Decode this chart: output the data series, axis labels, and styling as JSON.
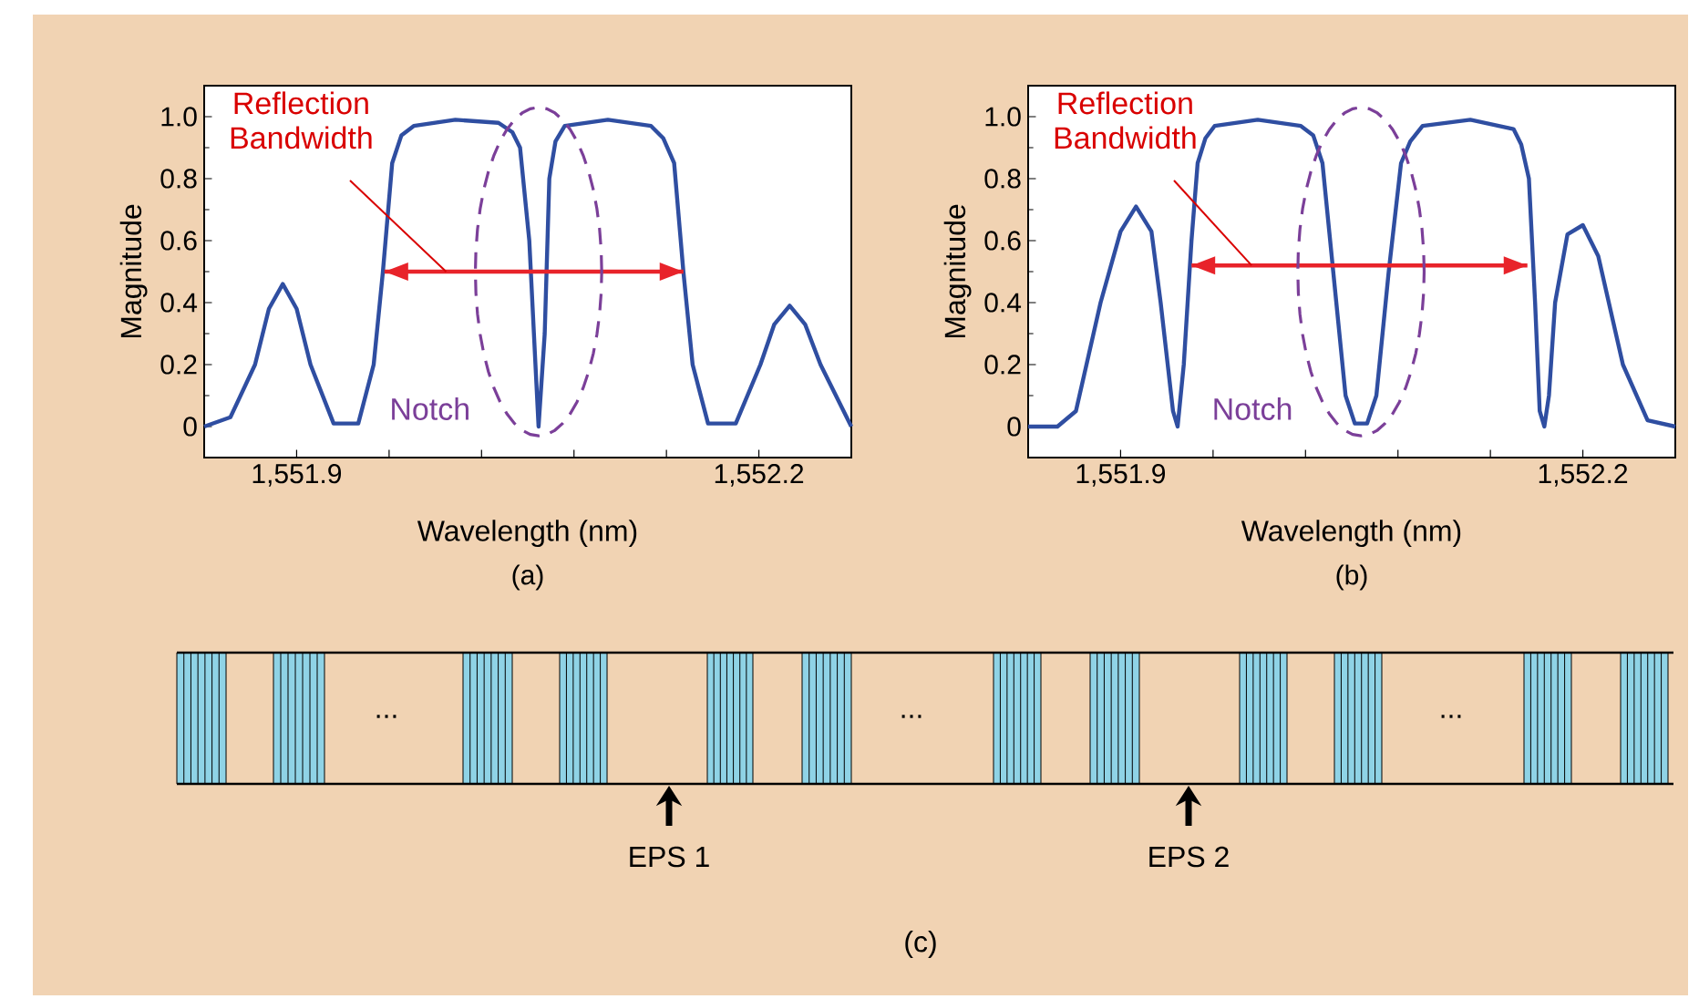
{
  "chart_data": [
    {
      "type": "line",
      "title": "(a)",
      "xlabel": "Wavelength (nm)",
      "ylabel": "Magnitude",
      "xlim": [
        1551.84,
        1552.26
      ],
      "ylim": [
        -0.1,
        1.1
      ],
      "xticks": [
        {
          "value": 1551.9,
          "label": "1,551.9"
        },
        {
          "value": 1551.96,
          "label": null
        },
        {
          "value": 1552.02,
          "label": null
        },
        {
          "value": 1552.08,
          "label": null
        },
        {
          "value": 1552.14,
          "label": null
        },
        {
          "value": 1552.2,
          "label": "1,552.2"
        }
      ],
      "yticks": [
        0,
        0.2,
        0.4,
        0.6,
        0.8,
        {
          "value": 1,
          "label": "1.0"
        }
      ],
      "series": [
        {
          "color": "#2f4ea1",
          "x": [
            1551.84,
            1551.857,
            1551.873,
            1551.882,
            1551.891,
            1551.9,
            1551.909,
            1551.924,
            1551.94,
            1551.95,
            1551.956,
            1551.962,
            1551.968,
            1551.976,
            1552.003,
            1552.031,
            1552.04,
            1552.045,
            1552.051,
            1552.055,
            1552.057,
            1552.061,
            1552.064,
            1552.068,
            1552.074,
            1552.102,
            1552.13,
            1552.138,
            1552.145,
            1552.151,
            1552.157,
            1552.167,
            1552.185,
            1552.201,
            1552.21,
            1552.22,
            1552.23,
            1552.24,
            1552.26
          ],
          "values": [
            0,
            0.03,
            0.2,
            0.38,
            0.46,
            0.38,
            0.2,
            0.01,
            0.01,
            0.2,
            0.5,
            0.85,
            0.94,
            0.97,
            0.99,
            0.98,
            0.95,
            0.9,
            0.6,
            0.2,
            0,
            0.3,
            0.8,
            0.92,
            0.97,
            0.99,
            0.97,
            0.93,
            0.85,
            0.5,
            0.2,
            0.01,
            0.01,
            0.2,
            0.33,
            0.39,
            0.33,
            0.2,
            0
          ]
        },
        {
          "color": "#e8232a",
          "x": [
            1551.957,
            1552.151
          ],
          "values": [
            0.5,
            0.5
          ]
        }
      ],
      "annotations": [
        {
          "text": "Reflection Bandwidth",
          "x": 1551.997,
          "y": 0.5
        },
        {
          "text": "Notch",
          "x": 1552.057,
          "y": 0
        }
      ]
    },
    {
      "type": "line",
      "title": "(b)",
      "xlabel": "Wavelength (nm)",
      "ylabel": "Magnitude",
      "xlim": [
        1551.84,
        1552.26
      ],
      "ylim": [
        -0.1,
        1.1
      ],
      "xticks": [
        {
          "value": 1551.9,
          "label": "1,551.9"
        },
        {
          "value": 1551.96,
          "label": null
        },
        {
          "value": 1552.02,
          "label": null
        },
        {
          "value": 1552.08,
          "label": null
        },
        {
          "value": 1552.14,
          "label": null
        },
        {
          "value": 1552.2,
          "label": "1,552.2"
        }
      ],
      "yticks": [
        0,
        0.2,
        0.4,
        0.6,
        0.8,
        {
          "value": 1,
          "label": "1.0"
        }
      ],
      "series": [
        {
          "color": "#2f4ea1",
          "x": [
            1551.84,
            1551.859,
            1551.871,
            1551.887,
            1551.9,
            1551.91,
            1551.92,
            1551.926,
            1551.934,
            1551.937,
            1551.941,
            1551.946,
            1551.95,
            1551.955,
            1551.961,
            1551.989,
            1552.017,
            1552.025,
            1552.031,
            1552.038,
            1552.046,
            1552.052,
            1552.06,
            1552.066,
            1552.074,
            1552.082,
            1552.088,
            1552.096,
            1552.127,
            1552.155,
            1552.16,
            1552.165,
            1552.169,
            1552.172,
            1552.175,
            1552.178,
            1552.182,
            1552.19,
            1552.2,
            1552.21,
            1552.226,
            1552.242,
            1552.26
          ],
          "values": [
            0,
            0,
            0.05,
            0.4,
            0.63,
            0.71,
            0.63,
            0.4,
            0.05,
            0,
            0.2,
            0.6,
            0.85,
            0.93,
            0.97,
            0.99,
            0.97,
            0.94,
            0.85,
            0.5,
            0.1,
            0.01,
            0.01,
            0.1,
            0.5,
            0.85,
            0.92,
            0.97,
            0.99,
            0.96,
            0.91,
            0.8,
            0.4,
            0.05,
            0,
            0.1,
            0.4,
            0.62,
            0.65,
            0.55,
            0.2,
            0.02,
            0
          ]
        },
        {
          "color": "#e8232a",
          "x": [
            1551.946,
            1552.164
          ],
          "values": [
            0.52,
            0.52
          ]
        }
      ],
      "annotations": [
        {
          "text": "Reflection Bandwidth",
          "x": 1551.985,
          "y": 0.52
        },
        {
          "text": "Notch",
          "x": 1552.056,
          "y": 0
        }
      ]
    },
    {
      "type": "other",
      "title": "(c)",
      "annotations": [
        "...",
        "...",
        "...",
        "EPS 1",
        "EPS 2"
      ]
    }
  ]
}
